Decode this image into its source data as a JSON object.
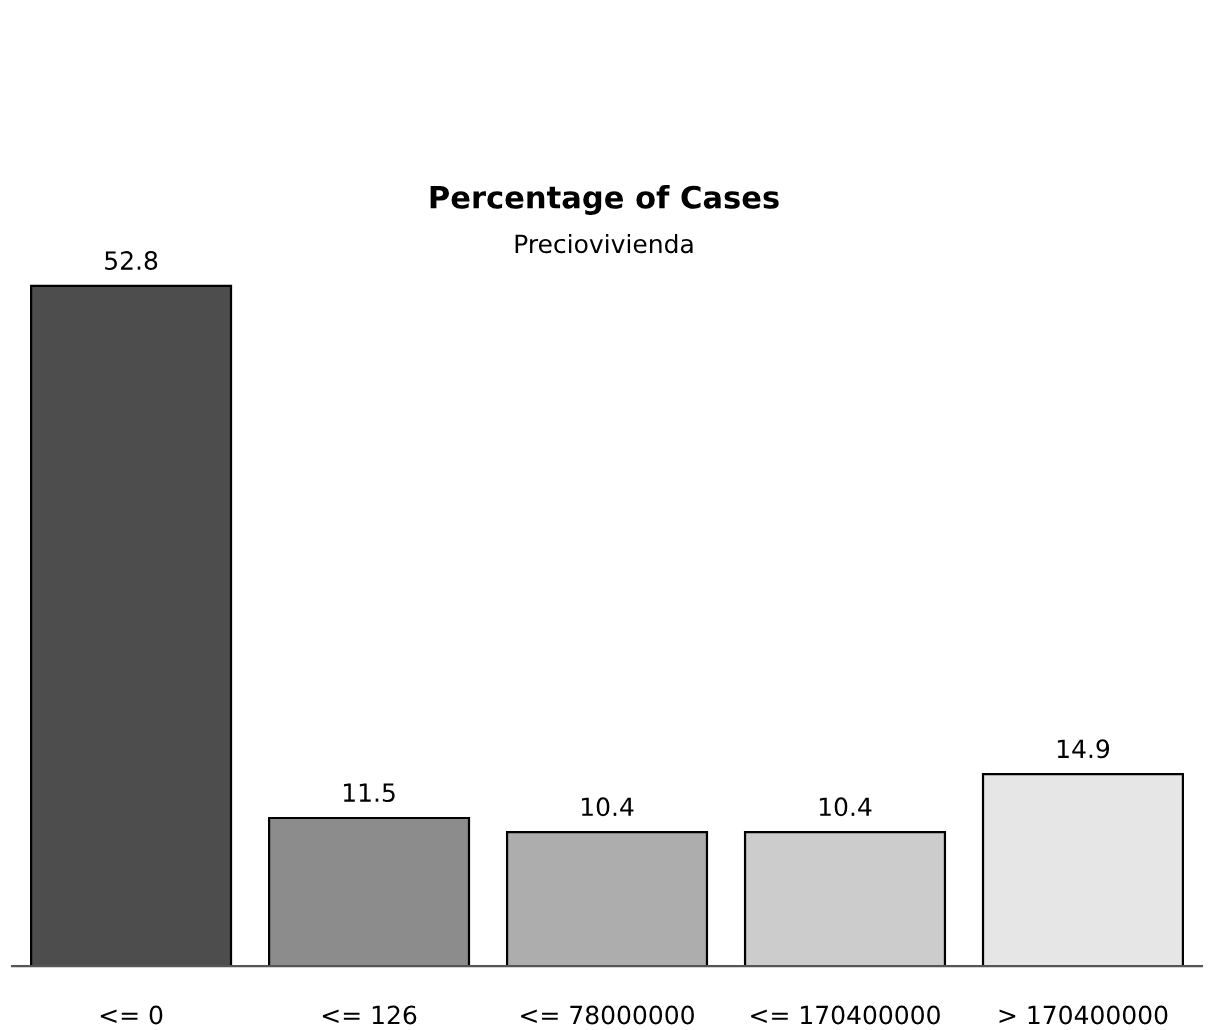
{
  "chart_data": {
    "type": "bar",
    "title": "Percentage of Cases",
    "subtitle": "Preciovivienda",
    "categories": [
      "<= 0",
      "<= 126",
      "<= 78000000",
      "<= 170400000",
      "> 170400000"
    ],
    "values": [
      52.8,
      11.5,
      10.4,
      10.4,
      14.9
    ],
    "colors": [
      "#4d4d4d",
      "#8c8c8c",
      "#adadad",
      "#cccccc",
      "#e6e6e6"
    ],
    "data_labels": true,
    "grid": false,
    "legend": false
  }
}
